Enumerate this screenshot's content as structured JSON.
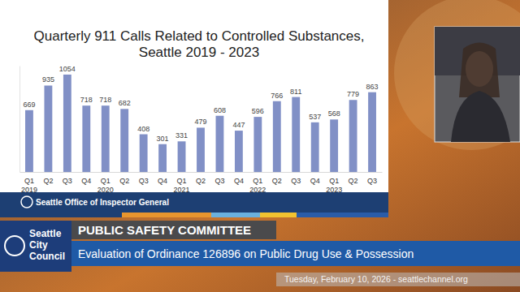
{
  "chart_data": {
    "type": "bar",
    "title": "Quarterly 911 Calls Related to Controlled Substances,\nSeattle 2019 - 2023",
    "categories": [
      "Q1\n2019",
      "Q2",
      "Q3",
      "Q4",
      "Q1\n2020",
      "Q2",
      "Q3",
      "Q4",
      "Q1\n2021",
      "Q2",
      "Q3",
      "Q4",
      "Q1\n2022",
      "Q2",
      "Q3",
      "Q4",
      "Q1\n2023",
      "Q2",
      "Q3"
    ],
    "values": [
      669,
      935,
      1054,
      718,
      718,
      682,
      408,
      301,
      331,
      479,
      608,
      447,
      596,
      766,
      811,
      537,
      568,
      779,
      863
    ],
    "color": "#8190c6",
    "ylim": [
      0,
      1150
    ],
    "data_labels": true,
    "tick_labels": "x",
    "grid": false
  },
  "broadcast": {
    "banner": "Seattle Office of Inspector General",
    "logo": "Seattle\nCity\nCouncil",
    "committee": "PUBLIC SAFETY COMMITTEE",
    "subject": "Evaluation of Ordinance 126896 on Public Drug Use & Possession",
    "date": "Tuesday, February 10, 2026 - seattlechannel.org"
  }
}
